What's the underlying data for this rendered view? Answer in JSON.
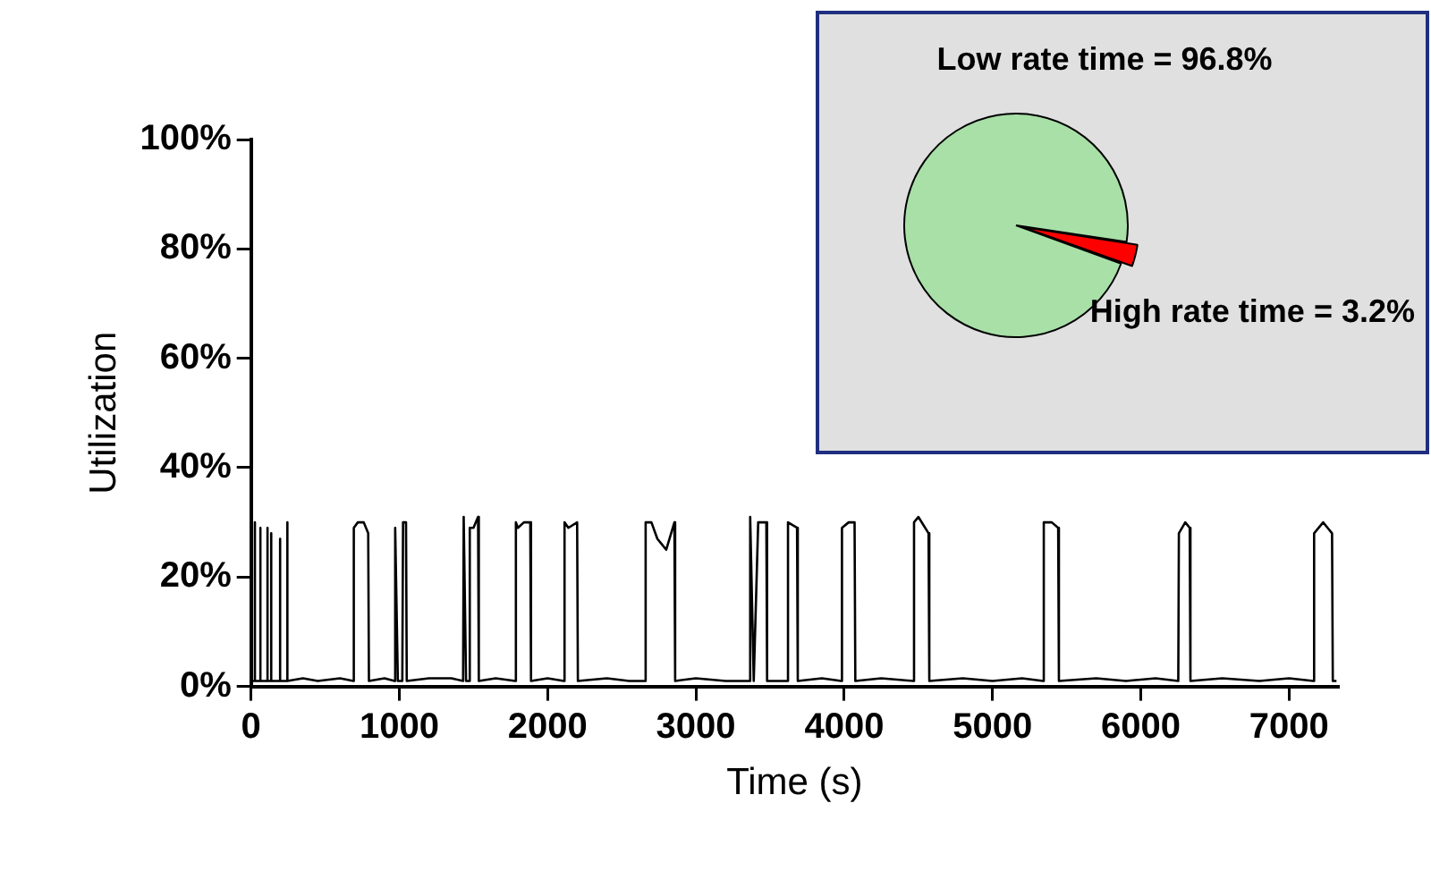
{
  "chart_data": [
    {
      "type": "line",
      "xlabel": "Time (s)",
      "ylabel": "Utilization",
      "xlim": [
        0,
        7330
      ],
      "xticks": [
        0,
        1000,
        2000,
        3000,
        4000,
        5000,
        6000,
        7000
      ],
      "ylim": [
        0,
        100
      ],
      "yticks": [
        {
          "value": 0,
          "label": "0%"
        },
        {
          "value": 20,
          "label": "20%"
        },
        {
          "value": 40,
          "label": "40%"
        },
        {
          "value": 60,
          "label": "60%"
        },
        {
          "value": 80,
          "label": "80%"
        },
        {
          "value": 100,
          "label": "100%"
        }
      ],
      "grid": false,
      "legend": false,
      "marker": "none",
      "line_style": "solid",
      "series": [
        {
          "color": "#000000",
          "x": [
            0,
            20,
            24,
            28,
            58,
            61,
            65,
            105,
            109,
            113,
            130,
            134,
            138,
            190,
            194,
            198,
            239,
            243,
            247,
            350,
            450,
            600,
            690,
            693,
            720,
            760,
            790,
            795,
            900,
            968,
            972,
            990,
            1020,
            1025,
            1045,
            1050,
            1200,
            1350,
            1430,
            1434,
            1450,
            1470,
            1475,
            1500,
            1531,
            1536,
            1650,
            1782,
            1786,
            1800,
            1840,
            1883,
            1888,
            2000,
            2110,
            2114,
            2140,
            2199,
            2204,
            2400,
            2550,
            2657,
            2661,
            2700,
            2740,
            2770,
            2800,
            2855,
            2860,
            3000,
            3200,
            3362,
            3366,
            3390,
            3420,
            3475,
            3480,
            3617,
            3621,
            3682,
            3687,
            3850,
            3981,
            3985,
            4030,
            4070,
            4075,
            4250,
            4467,
            4471,
            4500,
            4569,
            4574,
            4800,
            5000,
            5200,
            5342,
            5346,
            5400,
            5443,
            5448,
            5700,
            5900,
            6100,
            6253,
            6257,
            6300,
            6330,
            6335,
            6550,
            6800,
            7000,
            7165,
            7169,
            7230,
            7260,
            7290,
            7295,
            7320
          ],
          "values": [
            1,
            1,
            30,
            1,
            1,
            29,
            1,
            1,
            29,
            1,
            1,
            28,
            1,
            1,
            27,
            1,
            1,
            30,
            1,
            1.5,
            1,
            1.5,
            1,
            29,
            30,
            30,
            28,
            1,
            1.5,
            1,
            29,
            1,
            1,
            30,
            30,
            1,
            1.5,
            1.5,
            1,
            31,
            1,
            1,
            29,
            29,
            31,
            1,
            1.5,
            1,
            30,
            29,
            30,
            30,
            1,
            1.5,
            1,
            30,
            29,
            30,
            1,
            1.5,
            1,
            1,
            30,
            30,
            27,
            26,
            25,
            30,
            1,
            1.5,
            1,
            1,
            31,
            1,
            30,
            30,
            1,
            1,
            30,
            29,
            1,
            1.5,
            1,
            29,
            30,
            30,
            1,
            1.5,
            1,
            30,
            31,
            28,
            1,
            1.5,
            1,
            1.5,
            1,
            30,
            30,
            29,
            1,
            1.5,
            1,
            1.5,
            1,
            28,
            30,
            29,
            1,
            1.5,
            1,
            1.5,
            1,
            28,
            30,
            29,
            28,
            1,
            1
          ]
        }
      ]
    },
    {
      "type": "pie",
      "categories": [
        null,
        null
      ],
      "values": [
        96.8,
        3.2
      ],
      "colors": [
        "#a8e0a8",
        "#ff0000"
      ],
      "value_labels": [
        "Low rate time = 96.8%",
        "High rate time = 3.2%"
      ],
      "legend": false
    }
  ]
}
